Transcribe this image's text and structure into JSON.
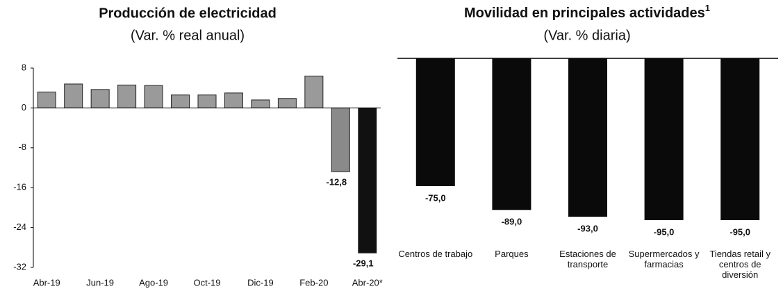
{
  "chart_data": [
    {
      "type": "bar",
      "title": "Producción de electricidad",
      "subtitle": "(Var. % real anual)",
      "categories": [
        "Abr-19",
        null,
        "Jun-19",
        null,
        "Ago-19",
        null,
        "Oct-19",
        null,
        "Dic-19",
        null,
        "Feb-20",
        null,
        "Abr-20*"
      ],
      "values": [
        3.2,
        4.8,
        3.7,
        4.6,
        4.5,
        2.6,
        2.6,
        3.0,
        1.6,
        1.9,
        6.4,
        -12.8,
        -29.1
      ],
      "value_labels": [
        null,
        null,
        null,
        null,
        null,
        null,
        null,
        null,
        null,
        null,
        null,
        "-12,8",
        "-29,1"
      ],
      "colors": [
        "#9a9a9a",
        "#9a9a9a",
        "#9a9a9a",
        "#9a9a9a",
        "#9a9a9a",
        "#9a9a9a",
        "#9a9a9a",
        "#9a9a9a",
        "#9a9a9a",
        "#9a9a9a",
        "#9a9a9a",
        "#8a8a8a",
        "#111111"
      ],
      "ylim": [
        -32,
        8
      ],
      "yticks": [
        8,
        0,
        -8,
        -16,
        -24,
        -32
      ]
    },
    {
      "type": "bar",
      "title": "Movilidad en principales actividades",
      "title_note": "1",
      "subtitle": "(Var. % diaria)",
      "categories": [
        "Centros de trabajo",
        "Parques",
        "Estaciones de transporte",
        "Supermercados y farmacias",
        "Tiendas retail y centros de diversión"
      ],
      "values": [
        -75,
        -89,
        -93,
        -95,
        -95
      ],
      "value_labels": [
        "-75,0",
        "-89,0",
        "-93,0",
        "-95,0",
        "-95,0"
      ],
      "color": "#0a0a0a"
    }
  ]
}
